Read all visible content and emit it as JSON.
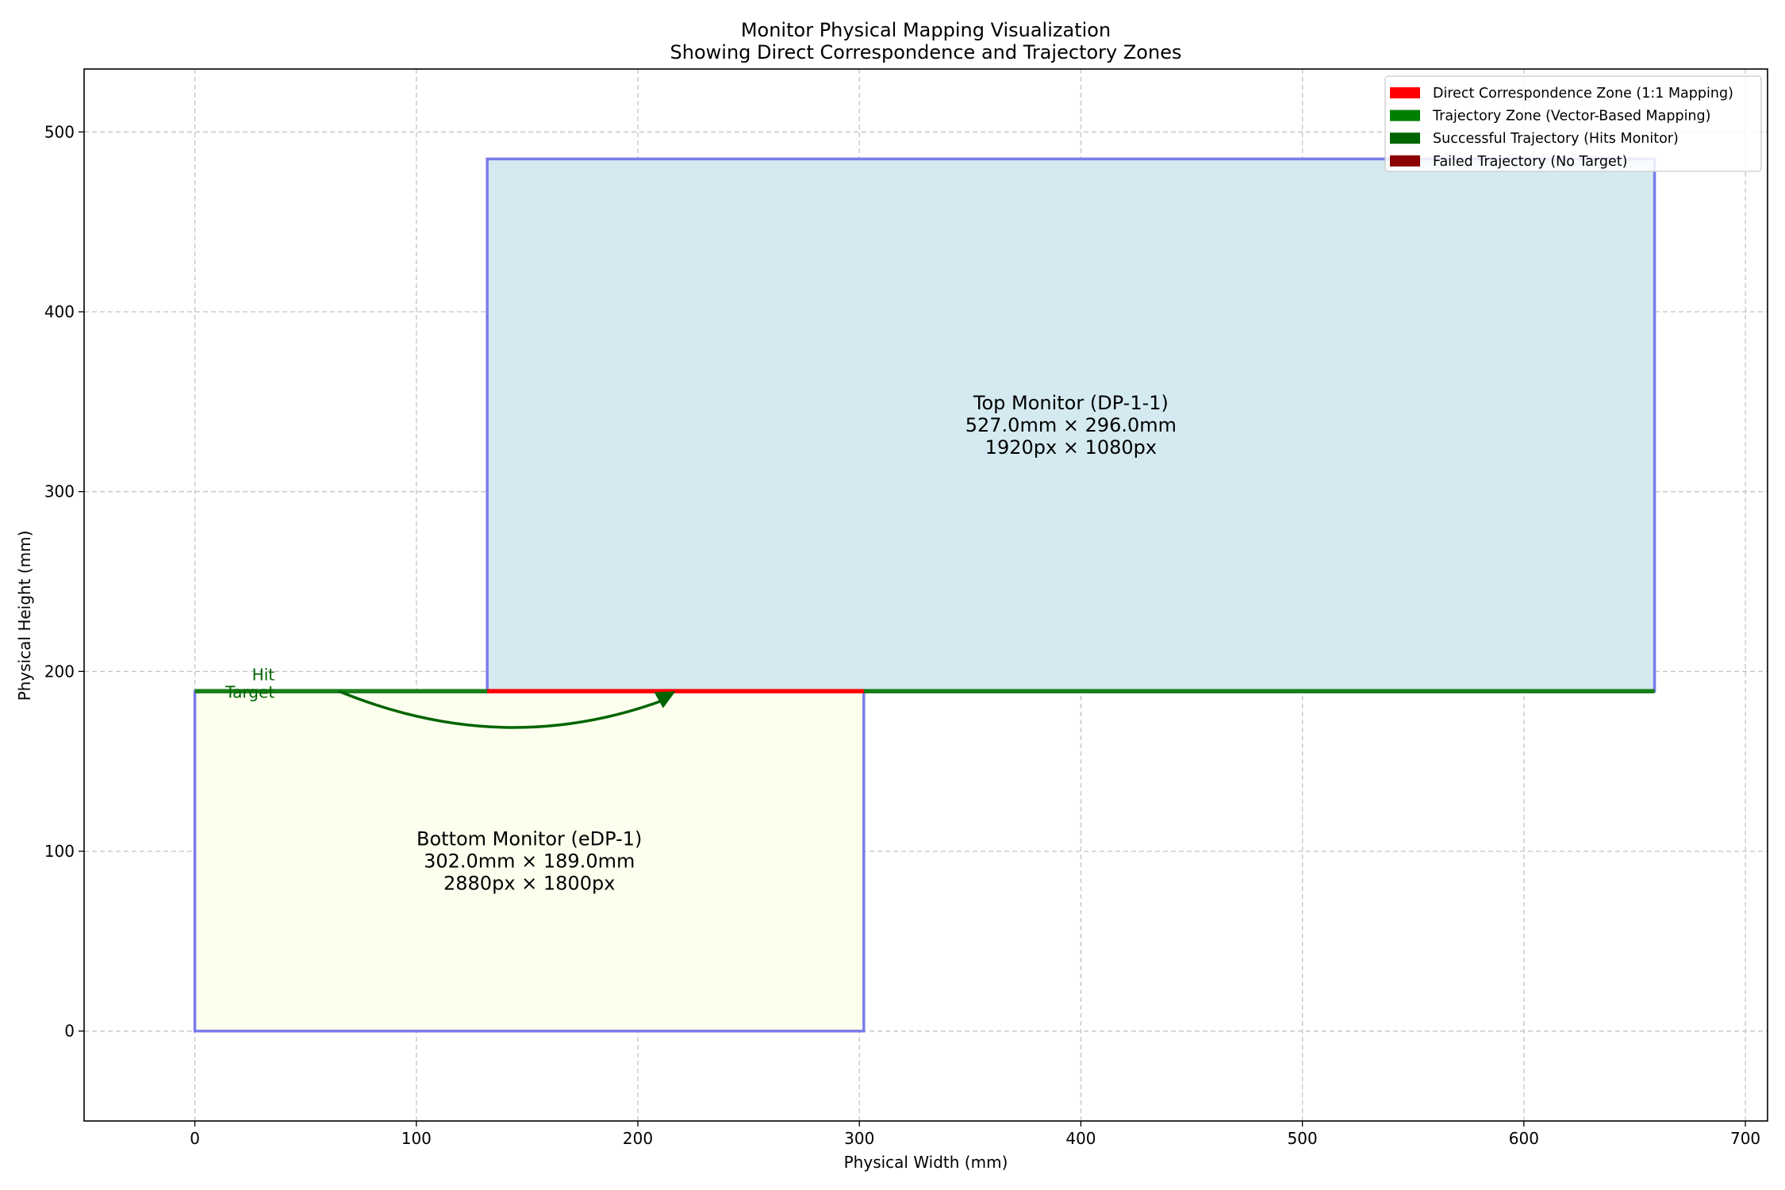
{
  "chart_data": {
    "type": "diagram",
    "title": "Monitor Physical Mapping Visualization",
    "subtitle": "Showing Direct Correspondence and Trajectory Zones",
    "xlabel": "Physical Width (mm)",
    "ylabel": "Physical Height (mm)",
    "xlim": [
      -50,
      710
    ],
    "ylim": [
      -50,
      535
    ],
    "xticks": [
      0,
      100,
      200,
      300,
      400,
      500,
      600,
      700
    ],
    "yticks": [
      0,
      100,
      200,
      300,
      400,
      500
    ],
    "grid": true,
    "legend_position": "top-right",
    "monitors": [
      {
        "id": "bottom",
        "name": "Bottom Monitor (eDP-1)",
        "dims_text": "302.0mm × 189.0mm",
        "res_text": "2880px × 1800px",
        "x": 0,
        "y": 0,
        "width": 302,
        "height": 189,
        "fill": "#fdffee",
        "edge": "#7b7bec"
      },
      {
        "id": "top",
        "name": "Top Monitor (DP-1-1)",
        "dims_text": "527.0mm × 296.0mm",
        "res_text": "1920px × 1080px",
        "x": 132,
        "y": 189,
        "width": 527,
        "height": 296,
        "fill": "#d4eaf0",
        "edge": "#7b7bec"
      }
    ],
    "zones": [
      {
        "type": "trajectory",
        "x_start": 0,
        "x_end": 659,
        "y": 189,
        "color": "#1a7f1a"
      },
      {
        "type": "direct",
        "x_start": 132,
        "x_end": 302,
        "y": 189,
        "color": "#ff0000"
      }
    ],
    "trajectory": {
      "start": [
        65,
        189
      ],
      "end": [
        215,
        189
      ],
      "dip_y": 170,
      "color": "#006400"
    },
    "annotation": {
      "text_line1": "Hit",
      "text_line2": "Target",
      "x": 36,
      "y": 196,
      "color": "#006400"
    },
    "legend": [
      {
        "label": "Direct Correspondence Zone (1:1 Mapping)",
        "color": "#ff0000"
      },
      {
        "label": "Trajectory Zone (Vector-Based Mapping)",
        "color": "#008000"
      },
      {
        "label": "Successful Trajectory (Hits Monitor)",
        "color": "#006400"
      },
      {
        "label": "Failed Trajectory (No Target)",
        "color": "#8b0000"
      }
    ]
  }
}
